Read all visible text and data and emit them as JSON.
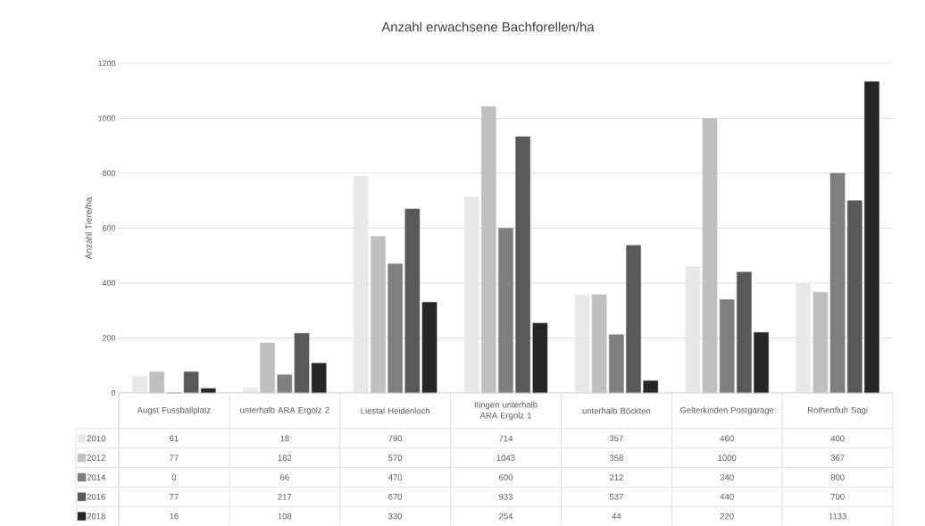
{
  "chart_data": {
    "type": "bar",
    "title": "Anzahl erwachsene Bachforellen/ha",
    "ylabel": "Anzahl Tiere/ha",
    "categories": [
      "Augst Fussballplatz",
      "unterhalb ARA Ergolz 2",
      "Liestal Heidenloch",
      "Itingen unterhalb ARA Ergolz 1",
      "unterhalb Böckten",
      "Gelterkinden Postgarage",
      "Rothenfluh Sagi"
    ],
    "series": [
      {
        "name": "2010",
        "color": "#e8e8e8",
        "values": [
          61,
          18,
          790,
          714,
          357,
          460,
          400
        ]
      },
      {
        "name": "2012",
        "color": "#bfbfbf",
        "values": [
          77,
          182,
          570,
          1043,
          358,
          1000,
          367
        ]
      },
      {
        "name": "2014",
        "color": "#7f7f7f",
        "values": [
          0,
          66,
          470,
          600,
          212,
          340,
          800
        ]
      },
      {
        "name": "2016",
        "color": "#595959",
        "values": [
          77,
          217,
          670,
          933,
          537,
          440,
          700
        ]
      },
      {
        "name": "2018",
        "color": "#262626",
        "values": [
          16,
          108,
          330,
          254,
          44,
          220,
          1133
        ]
      }
    ],
    "ylim": [
      0,
      1200
    ],
    "yticks": [
      0,
      200,
      400,
      600,
      800,
      1000,
      1200
    ],
    "grid": "y",
    "legend": "bottom",
    "data_labels": true
  }
}
